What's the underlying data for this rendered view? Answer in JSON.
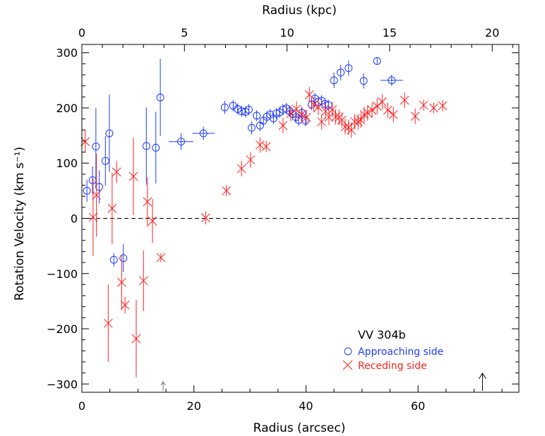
{
  "chart_data": {
    "type": "scatter",
    "title": "",
    "xlabel": "Radius (arcsec)",
    "x2label": "Radius (kpc)",
    "ylabel": "Rotation Velocity (km s⁻¹)",
    "xlim": [
      0,
      78
    ],
    "ylim": [
      -315,
      315
    ],
    "x2lim": [
      0,
      21.3
    ],
    "xticks": [
      0,
      20,
      40,
      60
    ],
    "x2ticks": [
      0,
      5,
      10,
      15,
      20
    ],
    "yticks": [
      -300,
      -200,
      -100,
      0,
      100,
      200,
      300
    ],
    "zero_line": 0,
    "annotation_title": "VV 304b",
    "legend": {
      "placement": "lower-right",
      "entries": [
        {
          "label": "Approaching side",
          "marker": "circle",
          "color": "#1f3cff"
        },
        {
          "label": "Receding side",
          "marker": "x",
          "color": "#ff1f1f"
        }
      ]
    },
    "arrows": [
      {
        "x": 14.5,
        "style": "small",
        "color": "#777777"
      },
      {
        "x": 71.5,
        "style": "large",
        "color": "#000000"
      }
    ],
    "series": [
      {
        "name": "Approaching side",
        "marker": "circle",
        "color": "#1f3cff",
        "points": [
          {
            "x": 0.9,
            "y": 50,
            "yerr": 20,
            "xerr": 0
          },
          {
            "x": 1.9,
            "y": 69,
            "yerr": 25,
            "xerr": 0
          },
          {
            "x": 2.5,
            "y": 130,
            "yerr": 70,
            "xerr": 0
          },
          {
            "x": 3.1,
            "y": 57,
            "yerr": 30,
            "xerr": 0
          },
          {
            "x": 4.2,
            "y": 104,
            "yerr": 45,
            "xerr": 0
          },
          {
            "x": 4.9,
            "y": 154,
            "yerr": 70,
            "xerr": 0
          },
          {
            "x": 5.7,
            "y": -75,
            "yerr": 12,
            "xerr": 0
          },
          {
            "x": 7.4,
            "y": -72,
            "yerr": 25,
            "xerr": 0
          },
          {
            "x": 11.5,
            "y": 131,
            "yerr": 70,
            "xerr": 0
          },
          {
            "x": 13.2,
            "y": 128,
            "yerr": 65,
            "xerr": 0
          },
          {
            "x": 14.0,
            "y": 219,
            "yerr": 70,
            "xerr": 0
          },
          {
            "x": 17.7,
            "y": 139,
            "yerr": 15,
            "xerr": 2.2
          },
          {
            "x": 21.7,
            "y": 154,
            "yerr": 12,
            "xerr": 2.0
          },
          {
            "x": 25.5,
            "y": 201,
            "yerr": 12,
            "xerr": 0
          },
          {
            "x": 27.0,
            "y": 204,
            "yerr": 10,
            "xerr": 0
          },
          {
            "x": 27.8,
            "y": 198,
            "yerr": 10,
            "xerr": 0
          },
          {
            "x": 28.5,
            "y": 194,
            "yerr": 10,
            "xerr": 0
          },
          {
            "x": 29.2,
            "y": 193,
            "yerr": 10,
            "xerr": 0
          },
          {
            "x": 29.8,
            "y": 197,
            "yerr": 10,
            "xerr": 0
          },
          {
            "x": 30.3,
            "y": 164,
            "yerr": 12,
            "xerr": 0
          },
          {
            "x": 31.2,
            "y": 186,
            "yerr": 10,
            "xerr": 0
          },
          {
            "x": 31.8,
            "y": 168,
            "yerr": 10,
            "xerr": 0
          },
          {
            "x": 32.4,
            "y": 177,
            "yerr": 10,
            "xerr": 0
          },
          {
            "x": 33.0,
            "y": 184,
            "yerr": 10,
            "xerr": 0
          },
          {
            "x": 33.6,
            "y": 188,
            "yerr": 10,
            "xerr": 0
          },
          {
            "x": 34.2,
            "y": 181,
            "yerr": 10,
            "xerr": 0
          },
          {
            "x": 34.7,
            "y": 190,
            "yerr": 10,
            "xerr": 0
          },
          {
            "x": 35.3,
            "y": 192,
            "yerr": 10,
            "xerr": 0
          },
          {
            "x": 35.9,
            "y": 197,
            "yerr": 10,
            "xerr": 0
          },
          {
            "x": 36.5,
            "y": 199,
            "yerr": 10,
            "xerr": 0
          },
          {
            "x": 37.1,
            "y": 194,
            "yerr": 10,
            "xerr": 0
          },
          {
            "x": 37.6,
            "y": 189,
            "yerr": 10,
            "xerr": 0
          },
          {
            "x": 38.2,
            "y": 183,
            "yerr": 10,
            "xerr": 0
          },
          {
            "x": 38.7,
            "y": 178,
            "yerr": 10,
            "xerr": 0
          },
          {
            "x": 39.3,
            "y": 191,
            "yerr": 10,
            "xerr": 0
          },
          {
            "x": 39.9,
            "y": 177,
            "yerr": 10,
            "xerr": 0
          },
          {
            "x": 41.0,
            "y": 206,
            "yerr": 10,
            "xerr": 0
          },
          {
            "x": 41.6,
            "y": 217,
            "yerr": 10,
            "xerr": 0
          },
          {
            "x": 42.2,
            "y": 211,
            "yerr": 10,
            "xerr": 0
          },
          {
            "x": 42.8,
            "y": 213,
            "yerr": 10,
            "xerr": 0
          },
          {
            "x": 43.4,
            "y": 207,
            "yerr": 10,
            "xerr": 0
          },
          {
            "x": 44.0,
            "y": 205,
            "yerr": 10,
            "xerr": 0
          },
          {
            "x": 45.0,
            "y": 250,
            "yerr": 14,
            "xerr": 0
          },
          {
            "x": 46.2,
            "y": 264,
            "yerr": 14,
            "xerr": 0
          },
          {
            "x": 47.6,
            "y": 272,
            "yerr": 14,
            "xerr": 0
          },
          {
            "x": 50.3,
            "y": 249,
            "yerr": 14,
            "xerr": 0
          },
          {
            "x": 52.7,
            "y": 285,
            "yerr": 7,
            "xerr": 0
          },
          {
            "x": 55.3,
            "y": 250,
            "yerr": 10,
            "xerr": 2.0
          }
        ]
      },
      {
        "name": "Receding side",
        "marker": "x",
        "color": "#ff1f1f",
        "points": [
          {
            "x": 0.6,
            "y": 139,
            "yerr": 20
          },
          {
            "x": 2.0,
            "y": 2,
            "yerr": 70
          },
          {
            "x": 2.6,
            "y": 42,
            "yerr": 75
          },
          {
            "x": 4.7,
            "y": -190,
            "yerr": 70
          },
          {
            "x": 5.4,
            "y": 18,
            "yerr": 65
          },
          {
            "x": 6.2,
            "y": 84,
            "yerr": 20
          },
          {
            "x": 7.1,
            "y": -116,
            "yerr": 50
          },
          {
            "x": 7.7,
            "y": -157,
            "yerr": 15
          },
          {
            "x": 9.2,
            "y": 76,
            "yerr": 70
          },
          {
            "x": 9.7,
            "y": -218,
            "yerr": 70
          },
          {
            "x": 11.0,
            "y": -113,
            "yerr": 55
          },
          {
            "x": 11.7,
            "y": 30,
            "yerr": 45
          },
          {
            "x": 12.6,
            "y": -5,
            "yerr": 40
          },
          {
            "x": 14.1,
            "y": -71,
            "yerr": 8
          },
          {
            "x": 22.1,
            "y": 1,
            "yerr": 12
          },
          {
            "x": 25.8,
            "y": 50,
            "yerr": 10
          },
          {
            "x": 28.5,
            "y": 90,
            "yerr": 14
          },
          {
            "x": 30.1,
            "y": 106,
            "yerr": 14
          },
          {
            "x": 31.8,
            "y": 133,
            "yerr": 14
          },
          {
            "x": 32.9,
            "y": 130,
            "yerr": 10
          },
          {
            "x": 35.9,
            "y": 168,
            "yerr": 14
          },
          {
            "x": 37.3,
            "y": 190,
            "yerr": 14
          },
          {
            "x": 38.3,
            "y": 198,
            "yerr": 14
          },
          {
            "x": 39.2,
            "y": 188,
            "yerr": 14
          },
          {
            "x": 40.1,
            "y": 183,
            "yerr": 14
          },
          {
            "x": 40.6,
            "y": 224,
            "yerr": 14
          },
          {
            "x": 41.4,
            "y": 206,
            "yerr": 14
          },
          {
            "x": 42.2,
            "y": 201,
            "yerr": 14
          },
          {
            "x": 42.8,
            "y": 175,
            "yerr": 14
          },
          {
            "x": 43.5,
            "y": 194,
            "yerr": 14
          },
          {
            "x": 44.1,
            "y": 183,
            "yerr": 14
          },
          {
            "x": 44.7,
            "y": 197,
            "yerr": 14
          },
          {
            "x": 45.3,
            "y": 184,
            "yerr": 14
          },
          {
            "x": 45.9,
            "y": 183,
            "yerr": 14
          },
          {
            "x": 46.4,
            "y": 178,
            "yerr": 14
          },
          {
            "x": 47.0,
            "y": 166,
            "yerr": 14
          },
          {
            "x": 47.6,
            "y": 165,
            "yerr": 14
          },
          {
            "x": 48.1,
            "y": 160,
            "yerr": 14
          },
          {
            "x": 48.7,
            "y": 175,
            "yerr": 14
          },
          {
            "x": 49.3,
            "y": 175,
            "yerr": 14
          },
          {
            "x": 49.8,
            "y": 178,
            "yerr": 14
          },
          {
            "x": 50.4,
            "y": 188,
            "yerr": 14
          },
          {
            "x": 51.0,
            "y": 191,
            "yerr": 14
          },
          {
            "x": 51.8,
            "y": 196,
            "yerr": 14
          },
          {
            "x": 52.7,
            "y": 203,
            "yerr": 14
          },
          {
            "x": 53.6,
            "y": 211,
            "yerr": 14
          },
          {
            "x": 54.6,
            "y": 196,
            "yerr": 14
          },
          {
            "x": 55.6,
            "y": 188,
            "yerr": 14
          },
          {
            "x": 57.6,
            "y": 214,
            "yerr": 14
          },
          {
            "x": 59.5,
            "y": 185,
            "yerr": 14
          },
          {
            "x": 61.0,
            "y": 205,
            "yerr": 10
          },
          {
            "x": 62.8,
            "y": 200,
            "yerr": 10
          },
          {
            "x": 64.4,
            "y": 204,
            "yerr": 10
          }
        ]
      }
    ]
  }
}
